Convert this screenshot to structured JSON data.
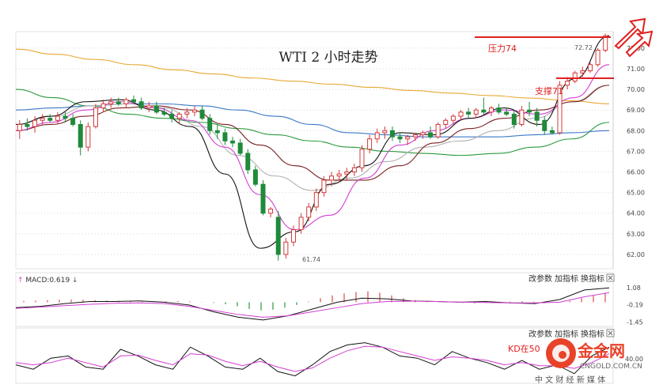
{
  "chart_data": [
    {
      "type": "candlestick",
      "title": "WTI 2 小时走势",
      "ylim": [
        61.5,
        72.8
      ],
      "y_ticks": [
        "72.00",
        "71.00",
        "70.00",
        "69.00",
        "68.00",
        "67.00",
        "66.00",
        "65.00",
        "64.00",
        "63.00",
        "62.00"
      ],
      "annotations": {
        "resistance_label": "压力74",
        "support_label": "支撑71",
        "low_label": "61.74",
        "high_label": "72.72"
      },
      "candles": [
        [
          68.0,
          68.5,
          67.6,
          68.3
        ],
        [
          68.3,
          68.6,
          68.0,
          68.2
        ],
        [
          68.2,
          68.7,
          67.9,
          68.5
        ],
        [
          68.5,
          68.8,
          68.3,
          68.6
        ],
        [
          68.6,
          68.8,
          68.4,
          68.5
        ],
        [
          68.5,
          68.9,
          68.3,
          68.7
        ],
        [
          68.7,
          68.9,
          68.4,
          68.6
        ],
        [
          68.6,
          68.8,
          68.2,
          68.3
        ],
        [
          68.3,
          68.5,
          66.8,
          67.2
        ],
        [
          67.2,
          68.4,
          67.0,
          68.2
        ],
        [
          68.2,
          69.3,
          68.1,
          69.1
        ],
        [
          69.1,
          69.5,
          68.9,
          69.3
        ],
        [
          69.3,
          69.6,
          69.1,
          69.4
        ],
        [
          69.4,
          69.6,
          69.2,
          69.3
        ],
        [
          69.3,
          69.6,
          69.1,
          69.5
        ],
        [
          69.5,
          69.7,
          69.3,
          69.4
        ],
        [
          69.4,
          69.6,
          69.0,
          69.1
        ],
        [
          69.1,
          69.4,
          68.9,
          69.2
        ],
        [
          69.2,
          69.4,
          68.8,
          68.9
        ],
        [
          68.9,
          69.1,
          68.7,
          68.8
        ],
        [
          68.8,
          69.0,
          68.4,
          68.6
        ],
        [
          68.6,
          68.9,
          68.3,
          68.8
        ],
        [
          68.8,
          69.1,
          68.6,
          68.9
        ],
        [
          68.9,
          69.2,
          68.7,
          69.0
        ],
        [
          69.0,
          69.2,
          68.5,
          68.6
        ],
        [
          68.6,
          68.8,
          67.8,
          68.0
        ],
        [
          68.0,
          68.3,
          67.6,
          67.9
        ],
        [
          67.9,
          68.1,
          67.3,
          67.5
        ],
        [
          67.5,
          67.7,
          67.2,
          67.4
        ],
        [
          67.4,
          67.6,
          66.8,
          66.9
        ],
        [
          66.9,
          67.1,
          65.9,
          66.1
        ],
        [
          66.1,
          66.3,
          65.3,
          65.4
        ],
        [
          65.4,
          65.6,
          63.9,
          64.0
        ],
        [
          64.0,
          64.3,
          63.8,
          64.2
        ],
        [
          63.8,
          64.1,
          61.7,
          62.0
        ],
        [
          62.0,
          62.8,
          61.8,
          62.6
        ],
        [
          62.6,
          63.4,
          62.4,
          63.2
        ],
        [
          63.2,
          64.0,
          63.0,
          63.8
        ],
        [
          63.8,
          64.5,
          63.6,
          64.3
        ],
        [
          64.3,
          65.2,
          64.1,
          65.0
        ],
        [
          65.0,
          65.8,
          64.8,
          65.6
        ],
        [
          65.6,
          66.0,
          65.3,
          65.8
        ],
        [
          65.8,
          66.1,
          65.5,
          65.9
        ],
        [
          65.9,
          66.2,
          65.6,
          66.0
        ],
        [
          66.0,
          66.4,
          65.8,
          66.2
        ],
        [
          66.2,
          67.3,
          66.0,
          67.1
        ],
        [
          67.1,
          67.8,
          66.9,
          67.6
        ],
        [
          67.6,
          68.1,
          67.4,
          67.9
        ],
        [
          67.9,
          68.2,
          67.6,
          68.0
        ],
        [
          68.0,
          68.2,
          67.5,
          67.7
        ],
        [
          67.7,
          67.9,
          67.4,
          67.6
        ],
        [
          67.6,
          67.8,
          67.3,
          67.7
        ],
        [
          67.7,
          67.9,
          67.5,
          67.8
        ],
        [
          67.8,
          68.0,
          67.6,
          67.9
        ],
        [
          67.9,
          68.2,
          67.6,
          67.7
        ],
        [
          67.7,
          68.4,
          67.6,
          68.3
        ],
        [
          68.3,
          68.6,
          68.1,
          68.5
        ],
        [
          68.5,
          68.8,
          68.3,
          68.7
        ],
        [
          68.7,
          69.0,
          68.5,
          68.9
        ],
        [
          68.9,
          69.1,
          68.6,
          68.8
        ],
        [
          68.8,
          69.1,
          68.6,
          69.0
        ],
        [
          69.0,
          69.6,
          68.8,
          68.9
        ],
        [
          68.9,
          69.2,
          68.7,
          69.1
        ],
        [
          69.1,
          69.3,
          68.8,
          68.9
        ],
        [
          68.9,
          69.1,
          68.7,
          68.8
        ],
        [
          68.8,
          69.0,
          68.1,
          68.3
        ],
        [
          68.3,
          69.2,
          68.2,
          69.0
        ],
        [
          69.0,
          69.4,
          68.7,
          68.9
        ],
        [
          68.9,
          69.1,
          68.2,
          68.5
        ],
        [
          68.5,
          68.7,
          67.8,
          68.0
        ],
        [
          68.0,
          68.2,
          67.8,
          67.9
        ],
        [
          67.9,
          70.4,
          67.8,
          70.2
        ],
        [
          70.2,
          70.6,
          70.0,
          70.4
        ],
        [
          70.4,
          70.9,
          70.3,
          70.8
        ],
        [
          70.8,
          71.1,
          70.6,
          70.9
        ],
        [
          70.9,
          71.3,
          70.8,
          71.2
        ],
        [
          71.2,
          72.0,
          71.1,
          71.9
        ],
        [
          71.9,
          72.7,
          71.8,
          72.6
        ]
      ],
      "moving_averages": [
        {
          "color": "#e8a832",
          "values": [
            71.95,
            71.7,
            71.45,
            71.2,
            70.95,
            70.75,
            70.55,
            70.4,
            70.25,
            70.1,
            69.95,
            69.82,
            69.7,
            69.58,
            69.45,
            69.3
          ]
        },
        {
          "color": "#2a9a3c",
          "values": [
            70.0,
            69.6,
            69.2,
            68.8,
            68.6,
            68.4,
            68.1,
            67.8,
            67.5,
            67.2,
            67.0,
            66.9,
            66.8,
            66.9,
            67.2,
            67.6,
            68.4
          ]
        },
        {
          "color": "#3a78c8",
          "values": [
            69.0,
            69.1,
            69.2,
            69.3,
            69.3,
            69.2,
            69.0,
            68.7,
            68.3,
            67.9,
            67.8,
            67.7,
            67.7,
            67.7,
            67.8,
            67.9,
            68.0
          ]
        },
        {
          "color": "#b0b0b0",
          "values": [
            68.3,
            68.7,
            69.2,
            69.3,
            69.1,
            68.2,
            66.8,
            65.8,
            65.1,
            65.7,
            66.5,
            67.2,
            67.5,
            68.0,
            68.6,
            69.4,
            70.2
          ]
        },
        {
          "color": "#7a1f1f",
          "values": [
            68.0,
            68.3,
            68.7,
            69.1,
            69.2,
            69.0,
            68.3,
            67.3,
            66.3,
            65.6,
            65.6,
            66.3,
            67.4,
            68.1,
            68.6,
            69.0,
            69.4,
            70.2
          ]
        },
        {
          "color": "#d23dd2",
          "values": [
            68.0,
            68.4,
            69.0,
            69.4,
            69.1,
            68.5,
            67.2,
            64.9,
            63.2,
            63.9,
            65.7,
            67.3,
            68.0,
            68.6,
            69.0,
            68.8,
            69.6,
            71.2
          ]
        },
        {
          "color": "#111111",
          "values": [
            68.3,
            68.7,
            69.4,
            69.5,
            69.0,
            68.2,
            65.9,
            62.3,
            63.1,
            65.4,
            66.3,
            67.9,
            67.8,
            68.6,
            69.1,
            68.3,
            70.5,
            72.6
          ]
        }
      ]
    },
    {
      "type": "macd",
      "header": "MACD:0.619",
      "controls": [
        "改参数",
        "加指标",
        "换指标"
      ],
      "y_ticks": [
        "1.08",
        "-0.19",
        "-1.45"
      ],
      "ylim": [
        -1.6,
        1.3
      ],
      "histogram": [
        0.1,
        0.12,
        0.15,
        0.18,
        0.2,
        0.18,
        0.15,
        0.12,
        0.1,
        0.08,
        0.05,
        0.04,
        0.06,
        0.08,
        0.06,
        0.02,
        -0.05,
        -0.15,
        -0.3,
        -0.5,
        -0.6,
        -0.55,
        -0.4,
        -0.2,
        0.05,
        0.3,
        0.5,
        0.65,
        0.75,
        0.8,
        0.7,
        0.5,
        0.3,
        0.15,
        0.05,
        0.02,
        -0.02,
        -0.05,
        -0.08,
        -0.05,
        0.0,
        0.05,
        0.08,
        0.05,
        -0.02,
        -0.05,
        0.1,
        0.3,
        0.5,
        0.7
      ],
      "dif": [
        -0.4,
        -0.3,
        -0.1,
        0.05,
        0.05,
        0.1,
        0.0,
        -0.2,
        -0.7,
        -1.1,
        -1.3,
        -1.0,
        -0.5,
        0.0,
        0.3,
        0.25,
        0.1,
        0.05,
        0.0,
        0.05,
        -0.05,
        -0.1,
        0.2,
        0.9,
        1.05
      ],
      "dea": [
        -0.45,
        -0.35,
        -0.25,
        -0.15,
        -0.08,
        -0.05,
        -0.1,
        -0.3,
        -0.6,
        -0.9,
        -1.1,
        -1.0,
        -0.7,
        -0.4,
        -0.1,
        0.05,
        0.08,
        0.05,
        0.0,
        -0.02,
        -0.05,
        -0.05,
        0.0,
        0.4,
        0.7
      ]
    },
    {
      "type": "kd",
      "controls": [
        "改参数",
        "加指标",
        "换指标"
      ],
      "annotation": "KD在50",
      "y_tick": "40.00",
      "ylim": [
        0,
        100
      ],
      "k": [
        40,
        30,
        55,
        60,
        35,
        30,
        75,
        60,
        40,
        30,
        80,
        60,
        35,
        30,
        55,
        25,
        15,
        40,
        70,
        85,
        90,
        80,
        60,
        55,
        40,
        70,
        55,
        45,
        30,
        50,
        30,
        40,
        20,
        60,
        80
      ],
      "d": [
        45,
        40,
        45,
        55,
        45,
        35,
        60,
        62,
        50,
        40,
        65,
        62,
        48,
        38,
        48,
        35,
        25,
        33,
        55,
        72,
        82,
        80,
        70,
        60,
        50,
        58,
        55,
        50,
        40,
        45,
        38,
        38,
        32,
        45,
        65
      ]
    }
  ],
  "watermark": {
    "brand": "金金网",
    "site": "CNGOLD.COM.CN",
    "tagline": "中 文 财 经 新 媒 体"
  },
  "colors": {
    "up": "#d43838",
    "down": "#1f8a3a",
    "resistance": "#e02020",
    "grid": "#d8d8d8",
    "macd_pos": "#e04a4a",
    "macd_neg": "#2a9a3c",
    "dif": "#111111",
    "dea": "#d23dd2",
    "logo": "#e8432a"
  }
}
